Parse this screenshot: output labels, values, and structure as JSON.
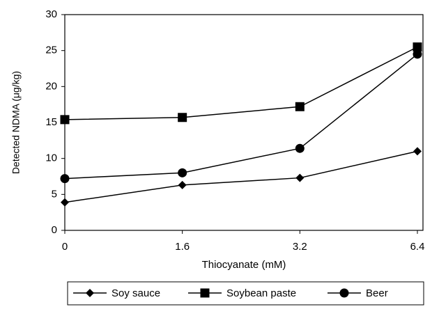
{
  "chart_data": {
    "type": "line",
    "x_label": "Thiocyanate (mM)",
    "y_label": "Detected NDMA (μg/kg)",
    "categories": [
      "0",
      "1.6",
      "3.2",
      "6.4"
    ],
    "series": [
      {
        "name": "Soy sauce",
        "color": "#000000",
        "marker": "diamond",
        "values": [
          3.9,
          6.3,
          7.3,
          11.0
        ]
      },
      {
        "name": "Soybean paste",
        "color": "#000000",
        "marker": "square",
        "values": [
          15.4,
          15.7,
          17.2,
          25.5
        ]
      },
      {
        "name": "Beer",
        "color": "#000000",
        "marker": "circle",
        "values": [
          7.2,
          8.0,
          11.4,
          24.5
        ]
      }
    ],
    "ylim": [
      0,
      30
    ],
    "yticks": [
      0,
      5,
      10,
      15,
      20,
      25,
      30
    ],
    "grid": false,
    "legend": "bottom"
  }
}
